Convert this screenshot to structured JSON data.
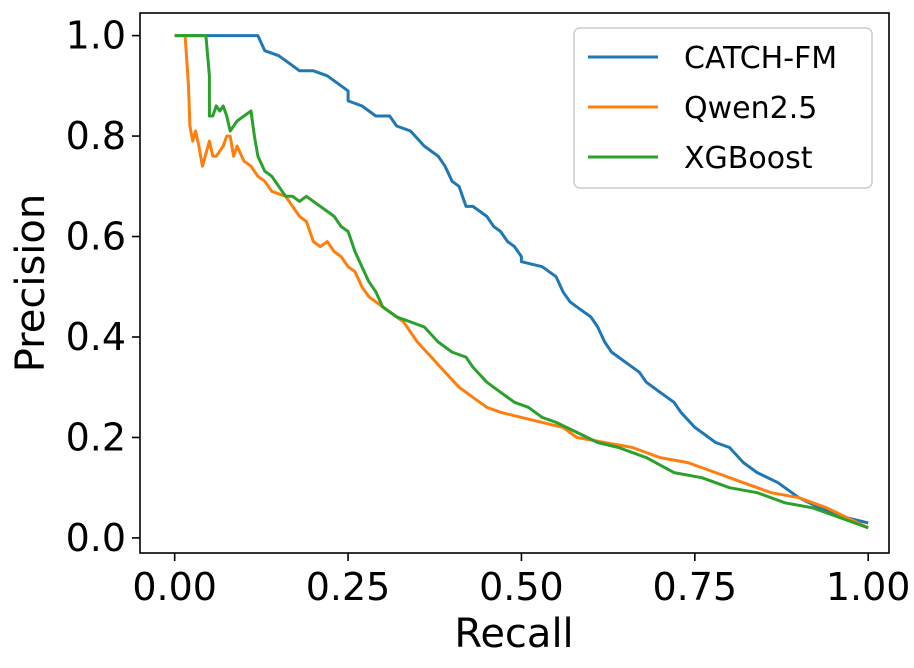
{
  "chart_data": {
    "type": "line",
    "title": "",
    "xlabel": "Recall",
    "ylabel": "Precision",
    "xlim": [
      -0.05,
      1.03
    ],
    "ylim": [
      -0.03,
      1.045
    ],
    "xticks": [
      "0.00",
      "0.25",
      "0.50",
      "0.75",
      "1.00"
    ],
    "xtick_values": [
      0,
      0.25,
      0.5,
      0.75,
      1.0
    ],
    "yticks": [
      "0.0",
      "0.2",
      "0.4",
      "0.6",
      "0.8",
      "1.0"
    ],
    "ytick_values": [
      0,
      0.2,
      0.4,
      0.6,
      0.8,
      1.0
    ],
    "grid": false,
    "legend_position": "top-right",
    "series": [
      {
        "name": "CATCH-FM",
        "color": "#1f77b4",
        "points": [
          [
            0.0,
            1.0
          ],
          [
            0.12,
            1.0
          ],
          [
            0.13,
            0.97
          ],
          [
            0.15,
            0.96
          ],
          [
            0.17,
            0.94
          ],
          [
            0.18,
            0.93
          ],
          [
            0.2,
            0.93
          ],
          [
            0.22,
            0.92
          ],
          [
            0.24,
            0.9
          ],
          [
            0.25,
            0.89
          ],
          [
            0.25,
            0.87
          ],
          [
            0.27,
            0.86
          ],
          [
            0.29,
            0.84
          ],
          [
            0.31,
            0.84
          ],
          [
            0.32,
            0.82
          ],
          [
            0.34,
            0.81
          ],
          [
            0.36,
            0.78
          ],
          [
            0.38,
            0.76
          ],
          [
            0.39,
            0.74
          ],
          [
            0.4,
            0.71
          ],
          [
            0.41,
            0.7
          ],
          [
            0.42,
            0.66
          ],
          [
            0.43,
            0.66
          ],
          [
            0.45,
            0.64
          ],
          [
            0.46,
            0.62
          ],
          [
            0.47,
            0.61
          ],
          [
            0.48,
            0.59
          ],
          [
            0.49,
            0.58
          ],
          [
            0.5,
            0.56
          ],
          [
            0.5,
            0.55
          ],
          [
            0.53,
            0.54
          ],
          [
            0.55,
            0.52
          ],
          [
            0.56,
            0.49
          ],
          [
            0.57,
            0.47
          ],
          [
            0.58,
            0.46
          ],
          [
            0.6,
            0.44
          ],
          [
            0.61,
            0.42
          ],
          [
            0.62,
            0.39
          ],
          [
            0.63,
            0.37
          ],
          [
            0.64,
            0.36
          ],
          [
            0.67,
            0.33
          ],
          [
            0.68,
            0.31
          ],
          [
            0.7,
            0.29
          ],
          [
            0.72,
            0.27
          ],
          [
            0.73,
            0.25
          ],
          [
            0.75,
            0.22
          ],
          [
            0.76,
            0.21
          ],
          [
            0.78,
            0.19
          ],
          [
            0.8,
            0.18
          ],
          [
            0.82,
            0.15
          ],
          [
            0.84,
            0.13
          ],
          [
            0.87,
            0.11
          ],
          [
            0.9,
            0.08
          ],
          [
            0.93,
            0.06
          ],
          [
            0.95,
            0.05
          ],
          [
            0.97,
            0.04
          ],
          [
            1.0,
            0.03
          ]
        ]
      },
      {
        "name": "Qwen2.5",
        "color": "#ff7f0e",
        "points": [
          [
            0.0,
            1.0
          ],
          [
            0.015,
            1.0
          ],
          [
            0.02,
            0.9
          ],
          [
            0.022,
            0.82
          ],
          [
            0.026,
            0.79
          ],
          [
            0.03,
            0.81
          ],
          [
            0.035,
            0.78
          ],
          [
            0.04,
            0.74
          ],
          [
            0.05,
            0.79
          ],
          [
            0.055,
            0.76
          ],
          [
            0.06,
            0.76
          ],
          [
            0.07,
            0.78
          ],
          [
            0.075,
            0.8
          ],
          [
            0.08,
            0.8
          ],
          [
            0.085,
            0.76
          ],
          [
            0.09,
            0.78
          ],
          [
            0.1,
            0.75
          ],
          [
            0.11,
            0.74
          ],
          [
            0.12,
            0.72
          ],
          [
            0.13,
            0.71
          ],
          [
            0.14,
            0.69
          ],
          [
            0.16,
            0.68
          ],
          [
            0.17,
            0.66
          ],
          [
            0.18,
            0.64
          ],
          [
            0.19,
            0.63
          ],
          [
            0.2,
            0.59
          ],
          [
            0.21,
            0.58
          ],
          [
            0.22,
            0.59
          ],
          [
            0.23,
            0.57
          ],
          [
            0.24,
            0.56
          ],
          [
            0.25,
            0.54
          ],
          [
            0.26,
            0.53
          ],
          [
            0.27,
            0.5
          ],
          [
            0.28,
            0.48
          ],
          [
            0.29,
            0.47
          ],
          [
            0.3,
            0.46
          ],
          [
            0.31,
            0.45
          ],
          [
            0.33,
            0.43
          ],
          [
            0.35,
            0.39
          ],
          [
            0.37,
            0.36
          ],
          [
            0.39,
            0.33
          ],
          [
            0.41,
            0.3
          ],
          [
            0.43,
            0.28
          ],
          [
            0.45,
            0.26
          ],
          [
            0.47,
            0.25
          ],
          [
            0.5,
            0.24
          ],
          [
            0.53,
            0.23
          ],
          [
            0.56,
            0.22
          ],
          [
            0.58,
            0.2
          ],
          [
            0.62,
            0.19
          ],
          [
            0.66,
            0.18
          ],
          [
            0.7,
            0.16
          ],
          [
            0.74,
            0.15
          ],
          [
            0.78,
            0.13
          ],
          [
            0.82,
            0.11
          ],
          [
            0.86,
            0.09
          ],
          [
            0.9,
            0.08
          ],
          [
            0.94,
            0.06
          ],
          [
            0.97,
            0.04
          ],
          [
            1.0,
            0.02
          ]
        ]
      },
      {
        "name": "XGBoost",
        "color": "#2ca02c",
        "points": [
          [
            0.0,
            1.0
          ],
          [
            0.045,
            1.0
          ],
          [
            0.05,
            0.92
          ],
          [
            0.05,
            0.84
          ],
          [
            0.055,
            0.84
          ],
          [
            0.06,
            0.86
          ],
          [
            0.065,
            0.85
          ],
          [
            0.07,
            0.86
          ],
          [
            0.075,
            0.84
          ],
          [
            0.08,
            0.81
          ],
          [
            0.09,
            0.83
          ],
          [
            0.1,
            0.84
          ],
          [
            0.11,
            0.85
          ],
          [
            0.115,
            0.8
          ],
          [
            0.12,
            0.76
          ],
          [
            0.13,
            0.73
          ],
          [
            0.14,
            0.72
          ],
          [
            0.15,
            0.7
          ],
          [
            0.16,
            0.68
          ],
          [
            0.17,
            0.68
          ],
          [
            0.18,
            0.67
          ],
          [
            0.19,
            0.68
          ],
          [
            0.2,
            0.67
          ],
          [
            0.21,
            0.66
          ],
          [
            0.22,
            0.65
          ],
          [
            0.23,
            0.64
          ],
          [
            0.24,
            0.62
          ],
          [
            0.25,
            0.61
          ],
          [
            0.26,
            0.57
          ],
          [
            0.27,
            0.54
          ],
          [
            0.28,
            0.51
          ],
          [
            0.29,
            0.49
          ],
          [
            0.3,
            0.46
          ],
          [
            0.32,
            0.44
          ],
          [
            0.34,
            0.43
          ],
          [
            0.36,
            0.42
          ],
          [
            0.38,
            0.39
          ],
          [
            0.4,
            0.37
          ],
          [
            0.42,
            0.36
          ],
          [
            0.43,
            0.34
          ],
          [
            0.45,
            0.31
          ],
          [
            0.47,
            0.29
          ],
          [
            0.49,
            0.27
          ],
          [
            0.51,
            0.26
          ],
          [
            0.53,
            0.24
          ],
          [
            0.55,
            0.23
          ],
          [
            0.58,
            0.21
          ],
          [
            0.61,
            0.19
          ],
          [
            0.64,
            0.18
          ],
          [
            0.68,
            0.16
          ],
          [
            0.72,
            0.13
          ],
          [
            0.76,
            0.12
          ],
          [
            0.8,
            0.1
          ],
          [
            0.84,
            0.09
          ],
          [
            0.88,
            0.07
          ],
          [
            0.92,
            0.06
          ],
          [
            0.96,
            0.04
          ],
          [
            1.0,
            0.02
          ]
        ]
      }
    ]
  }
}
